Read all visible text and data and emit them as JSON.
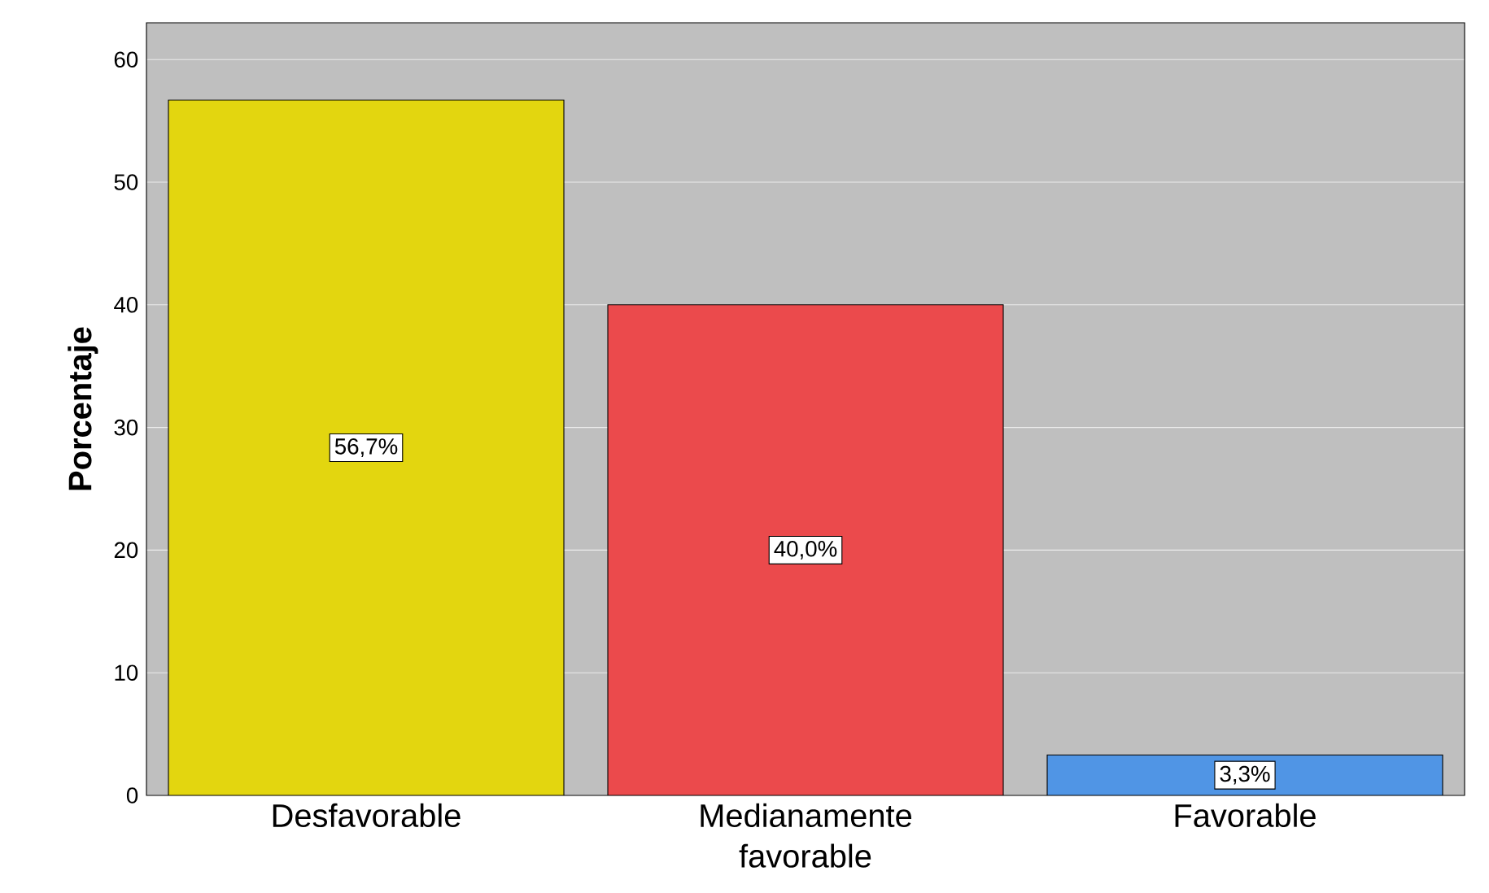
{
  "chart_data": {
    "type": "bar",
    "ylabel": "Porcentaje",
    "categories": [
      "Desfavorable",
      "Medianamente favorable",
      "Favorable"
    ],
    "values": [
      56.7,
      40.0,
      3.3
    ],
    "colors": [
      "#e3d60f",
      "#eb4a4c",
      "#5095e5"
    ],
    "value_labels": [
      "56,7%",
      "40,0%",
      "3,3%"
    ],
    "ylim": [
      0,
      63
    ],
    "yticks": [
      0,
      10,
      20,
      30,
      40,
      50,
      60
    ],
    "grid": "y"
  }
}
